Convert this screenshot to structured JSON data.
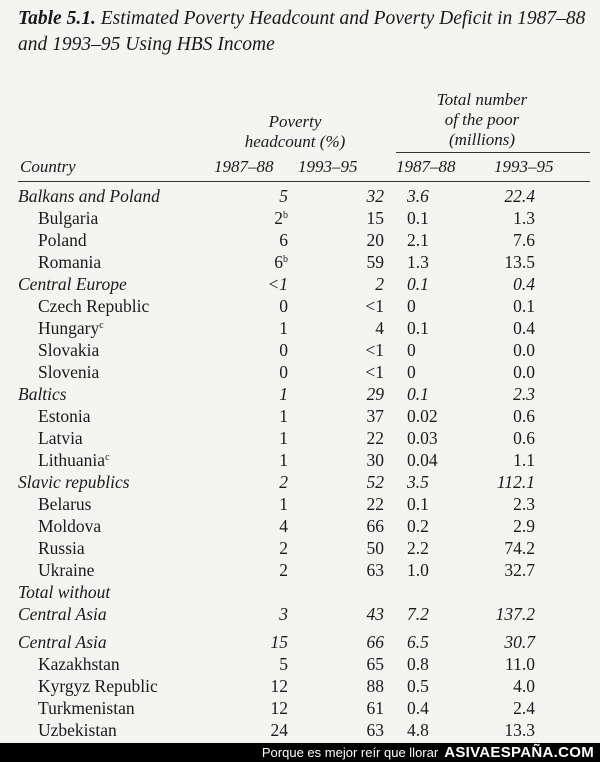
{
  "title": {
    "label": "Table 5.1.",
    "text": "Estimated Poverty Headcount and Poverty Deficit in 1987–88 and 1993–95 Using HBS Income"
  },
  "headers": {
    "group1_line1": "Poverty",
    "group1_line2": "headcount (%)",
    "group2_line1": "Total number",
    "group2_line2": "of the poor",
    "group2_line3": "(millions)",
    "country": "Country",
    "y1": "1987–88",
    "y2": "1993–95",
    "y3": "1987–88",
    "y4": "1993–95"
  },
  "rows": [
    {
      "name": "Balkans and Poland",
      "sup": "",
      "v": [
        "5",
        "",
        "32",
        "3.6",
        "22.4"
      ],
      "group": true
    },
    {
      "name": "Bulgaria",
      "sup": "",
      "v": [
        "2",
        "b",
        "15",
        "0.1",
        "1.3"
      ],
      "group": false
    },
    {
      "name": "Poland",
      "sup": "",
      "v": [
        "6",
        "",
        "20",
        "2.1",
        "7.6"
      ],
      "group": false
    },
    {
      "name": "Romania",
      "sup": "",
      "v": [
        "6",
        "b",
        "59",
        "1.3",
        "13.5"
      ],
      "group": false
    },
    {
      "name": "Central Europe",
      "sup": "",
      "v": [
        "<1",
        "",
        "2",
        "0.1",
        "0.4"
      ],
      "group": true
    },
    {
      "name": "Czech Republic",
      "sup": "",
      "v": [
        "0",
        "",
        "<1",
        "0",
        "0.1"
      ],
      "group": false
    },
    {
      "name": "Hungary",
      "sup": "c",
      "v": [
        "1",
        "",
        "4",
        "0.1",
        "0.4"
      ],
      "group": false
    },
    {
      "name": "Slovakia",
      "sup": "",
      "v": [
        "0",
        "",
        "<1",
        "0",
        "0.0"
      ],
      "group": false
    },
    {
      "name": "Slovenia",
      "sup": "",
      "v": [
        "0",
        "",
        "<1",
        "0",
        "0.0"
      ],
      "group": false
    },
    {
      "name": "Baltics",
      "sup": "",
      "v": [
        "1",
        "",
        "29",
        "0.1",
        "2.3"
      ],
      "group": true
    },
    {
      "name": "Estonia",
      "sup": "",
      "v": [
        "1",
        "",
        "37",
        "0.02",
        "0.6"
      ],
      "group": false
    },
    {
      "name": "Latvia",
      "sup": "",
      "v": [
        "1",
        "",
        "22",
        "0.03",
        "0.6"
      ],
      "group": false
    },
    {
      "name": "Lithuania",
      "sup": "c",
      "v": [
        "1",
        "",
        "30",
        "0.04",
        "1.1"
      ],
      "group": false
    },
    {
      "name": "Slavic republics",
      "sup": "",
      "v": [
        "2",
        "",
        "52",
        "3.5",
        "112.1"
      ],
      "group": true
    },
    {
      "name": "Belarus",
      "sup": "",
      "v": [
        "1",
        "",
        "22",
        "0.1",
        "2.3"
      ],
      "group": false
    },
    {
      "name": "Moldova",
      "sup": "",
      "v": [
        "4",
        "",
        "66",
        "0.2",
        "2.9"
      ],
      "group": false
    },
    {
      "name": "Russia",
      "sup": "",
      "v": [
        "2",
        "",
        "50",
        "2.2",
        "74.2"
      ],
      "group": false
    },
    {
      "name": "Ukraine",
      "sup": "",
      "v": [
        "2",
        "",
        "63",
        "1.0",
        "32.7"
      ],
      "group": false
    },
    {
      "name": "Total without",
      "sup": "",
      "v": [
        "",
        "",
        "",
        "",
        ""
      ],
      "group": true
    },
    {
      "name": "Central Asia",
      "sup": "",
      "v": [
        "3",
        "",
        "43",
        "7.2",
        "137.2"
      ],
      "group": true
    },
    {
      "name": "",
      "sup": "",
      "v": [
        "",
        "",
        "",
        "",
        ""
      ],
      "gap": true
    },
    {
      "name": "Central Asia",
      "sup": "",
      "v": [
        "15",
        "",
        "66",
        "6.5",
        "30.7"
      ],
      "group": true
    },
    {
      "name": "Kazakhstan",
      "sup": "",
      "v": [
        "5",
        "",
        "65",
        "0.8",
        "11.0"
      ],
      "group": false
    },
    {
      "name": "Kyrgyz Republic",
      "sup": "",
      "v": [
        "12",
        "",
        "88",
        "0.5",
        "4.0"
      ],
      "group": false
    },
    {
      "name": "Turkmenistan",
      "sup": "",
      "v": [
        "12",
        "",
        "61",
        "0.4",
        "2.4"
      ],
      "group": false
    },
    {
      "name": "Uzbekistan",
      "sup": "",
      "v": [
        "24",
        "",
        "63",
        "4.8",
        "13.3"
      ],
      "group": false
    }
  ],
  "footer": {
    "slogan": "Porque es mejor reír que llorar",
    "brand": "ASIVAESPAÑA.COM"
  }
}
